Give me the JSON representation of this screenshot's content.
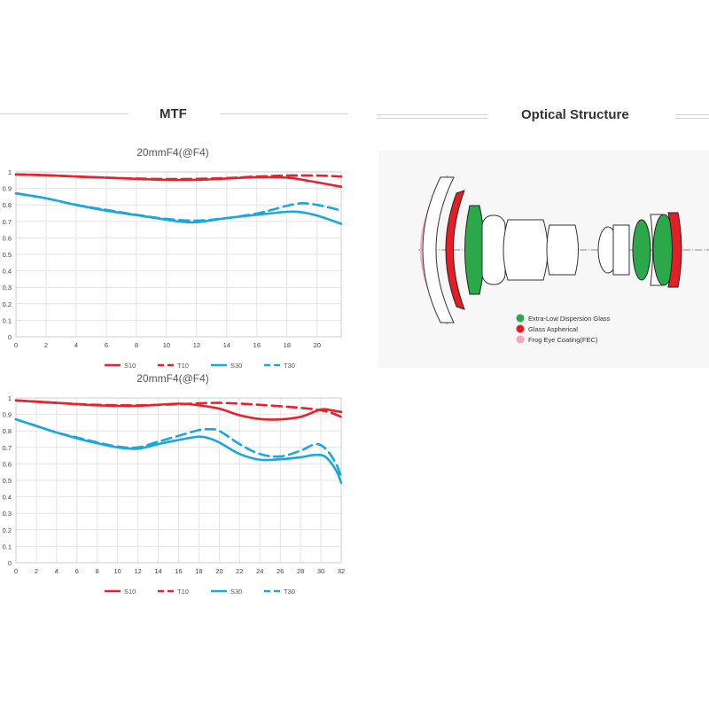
{
  "mtf_heading": "MTF",
  "optical_heading": "Optical Structure",
  "colors": {
    "sagittal_10": "#e8212b",
    "meridional_10": "#e8212b",
    "sagittal_30": "#1ba7dd",
    "meridional_30": "#1ba7dd",
    "ed_glass": "#2aa84a",
    "aspherical": "#e31e25",
    "fec": "#f4a9b6"
  },
  "legend_items": {
    "ed": "Extra-Low Dispersion Glass",
    "asph": "Glass Aspherical",
    "fec": "Frog Eye Coating(FEC)"
  },
  "chart_data": [
    {
      "type": "line",
      "title": "20mmF4(@F4)",
      "xlabel": "",
      "ylabel": "",
      "xlim": [
        0,
        21.6
      ],
      "ylim": [
        0,
        1
      ],
      "x_ticks": [
        "0",
        "2",
        "4",
        "6",
        "8",
        "10",
        "12",
        "14",
        "16",
        "18",
        "20"
      ],
      "y_ticks": [
        "0",
        "0.1",
        "0.2",
        "0.3",
        "0.4",
        "0.5",
        "0.6",
        "0.7",
        "0.8",
        "0.9",
        "1"
      ],
      "grid": true,
      "legend_position": "bottom",
      "series": [
        {
          "name": "S10",
          "style": "solid",
          "color": "#e8212b",
          "points": [
            [
              0,
              0.985
            ],
            [
              2,
              0.98
            ],
            [
              4,
              0.972
            ],
            [
              6,
              0.965
            ],
            [
              8,
              0.958
            ],
            [
              10,
              0.952
            ],
            [
              12,
              0.952
            ],
            [
              14,
              0.96
            ],
            [
              16,
              0.968
            ],
            [
              18,
              0.965
            ],
            [
              19.5,
              0.945
            ],
            [
              21.6,
              0.91
            ]
          ]
        },
        {
          "name": "T10",
          "style": "dashed",
          "color": "#e8212b",
          "points": [
            [
              0,
              0.985
            ],
            [
              2,
              0.98
            ],
            [
              4,
              0.972
            ],
            [
              6,
              0.965
            ],
            [
              8,
              0.96
            ],
            [
              10,
              0.957
            ],
            [
              12,
              0.958
            ],
            [
              14,
              0.963
            ],
            [
              16,
              0.972
            ],
            [
              18,
              0.978
            ],
            [
              20,
              0.978
            ],
            [
              21.6,
              0.972
            ]
          ]
        },
        {
          "name": "S30",
          "style": "solid",
          "color": "#1ba7dd",
          "points": [
            [
              0,
              0.87
            ],
            [
              2,
              0.84
            ],
            [
              4,
              0.8
            ],
            [
              6,
              0.765
            ],
            [
              8,
              0.738
            ],
            [
              10,
              0.71
            ],
            [
              11,
              0.698
            ],
            [
              12,
              0.695
            ],
            [
              14,
              0.72
            ],
            [
              16,
              0.74
            ],
            [
              18,
              0.758
            ],
            [
              19,
              0.755
            ],
            [
              20,
              0.735
            ],
            [
              21,
              0.705
            ],
            [
              21.6,
              0.685
            ]
          ]
        },
        {
          "name": "T30",
          "style": "dashed",
          "color": "#1ba7dd",
          "points": [
            [
              0,
              0.87
            ],
            [
              2,
              0.84
            ],
            [
              4,
              0.8
            ],
            [
              6,
              0.77
            ],
            [
              8,
              0.74
            ],
            [
              10,
              0.715
            ],
            [
              12,
              0.705
            ],
            [
              14,
              0.72
            ],
            [
              16,
              0.748
            ],
            [
              17,
              0.77
            ],
            [
              18,
              0.795
            ],
            [
              19,
              0.81
            ],
            [
              20,
              0.8
            ],
            [
              21,
              0.78
            ],
            [
              21.6,
              0.765
            ]
          ]
        }
      ]
    },
    {
      "type": "line",
      "title": "20mmF4(@F4)",
      "xlabel": "",
      "ylabel": "",
      "xlim": [
        0,
        32
      ],
      "ylim": [
        0,
        1
      ],
      "x_ticks": [
        "0",
        "2",
        "4",
        "6",
        "8",
        "10",
        "12",
        "14",
        "16",
        "18",
        "20",
        "22",
        "24",
        "26",
        "28",
        "30",
        "32"
      ],
      "y_ticks": [
        "0",
        "0.1",
        "0.2",
        "0.3",
        "0.4",
        "0.5",
        "0.6",
        "0.7",
        "0.8",
        "0.9",
        "1"
      ],
      "grid": true,
      "legend_position": "bottom",
      "series": [
        {
          "name": "S10",
          "style": "solid",
          "color": "#e8212b",
          "points": [
            [
              0,
              0.985
            ],
            [
              4,
              0.97
            ],
            [
              8,
              0.955
            ],
            [
              12,
              0.952
            ],
            [
              16,
              0.965
            ],
            [
              18,
              0.955
            ],
            [
              20,
              0.935
            ],
            [
              22,
              0.895
            ],
            [
              24,
              0.872
            ],
            [
              26,
              0.87
            ],
            [
              28,
              0.885
            ],
            [
              30,
              0.93
            ],
            [
              31,
              0.925
            ],
            [
              32,
              0.915
            ]
          ]
        },
        {
          "name": "T10",
          "style": "dashed",
          "color": "#e8212b",
          "points": [
            [
              0,
              0.985
            ],
            [
              4,
              0.97
            ],
            [
              8,
              0.958
            ],
            [
              12,
              0.955
            ],
            [
              16,
              0.962
            ],
            [
              20,
              0.97
            ],
            [
              24,
              0.958
            ],
            [
              28,
              0.94
            ],
            [
              30,
              0.925
            ],
            [
              31,
              0.91
            ],
            [
              32,
              0.885
            ]
          ]
        },
        {
          "name": "S30",
          "style": "solid",
          "color": "#1ba7dd",
          "points": [
            [
              0,
              0.87
            ],
            [
              2,
              0.83
            ],
            [
              4,
              0.79
            ],
            [
              6,
              0.755
            ],
            [
              8,
              0.725
            ],
            [
              10,
              0.7
            ],
            [
              12,
              0.692
            ],
            [
              14,
              0.72
            ],
            [
              16,
              0.745
            ],
            [
              18,
              0.765
            ],
            [
              19,
              0.755
            ],
            [
              20,
              0.73
            ],
            [
              22,
              0.66
            ],
            [
              24,
              0.625
            ],
            [
              26,
              0.628
            ],
            [
              28,
              0.64
            ],
            [
              29.5,
              0.655
            ],
            [
              30.5,
              0.64
            ],
            [
              31.5,
              0.56
            ],
            [
              32,
              0.485
            ]
          ]
        },
        {
          "name": "T30",
          "style": "dashed",
          "color": "#1ba7dd",
          "points": [
            [
              0,
              0.87
            ],
            [
              2,
              0.83
            ],
            [
              4,
              0.79
            ],
            [
              6,
              0.76
            ],
            [
              8,
              0.73
            ],
            [
              10,
              0.705
            ],
            [
              12,
              0.7
            ],
            [
              14,
              0.735
            ],
            [
              16,
              0.77
            ],
            [
              18,
              0.805
            ],
            [
              19,
              0.81
            ],
            [
              20,
              0.8
            ],
            [
              22,
              0.72
            ],
            [
              24,
              0.66
            ],
            [
              26,
              0.645
            ],
            [
              28,
              0.68
            ],
            [
              29.5,
              0.72
            ],
            [
              30.5,
              0.69
            ],
            [
              31.5,
              0.6
            ],
            [
              32,
              0.52
            ]
          ]
        }
      ]
    }
  ]
}
